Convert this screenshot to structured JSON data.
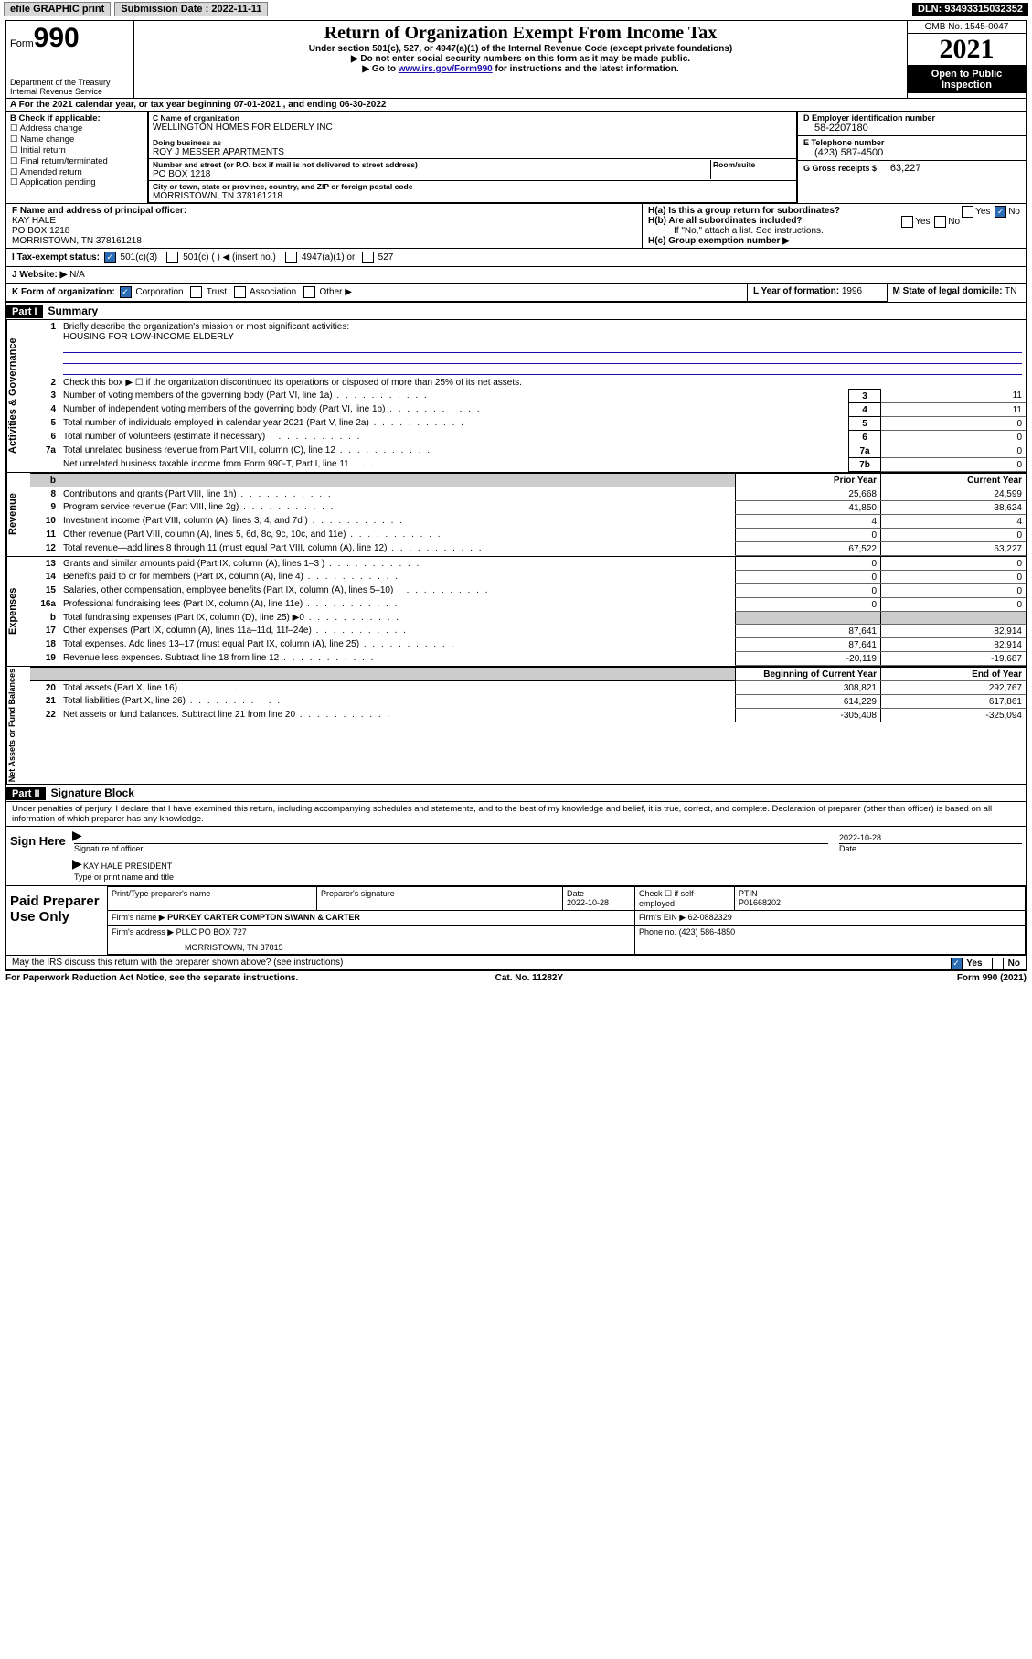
{
  "topbar": {
    "efile": "efile GRAPHIC print",
    "sub_label": "Submission Date : ",
    "sub_date": "2022-11-11",
    "dln": "DLN: 93493315032352"
  },
  "header": {
    "form_word": "Form",
    "form_num": "990",
    "dept1": "Department of the Treasury",
    "dept2": "Internal Revenue Service",
    "title": "Return of Organization Exempt From Income Tax",
    "sub1": "Under section 501(c), 527, or 4947(a)(1) of the Internal Revenue Code (except private foundations)",
    "sub2": "▶ Do not enter social security numbers on this form as it may be made public.",
    "sub3a": "▶ Go to ",
    "sub3link": "www.irs.gov/Form990",
    "sub3b": " for instructions and the latest information.",
    "omb": "OMB No. 1545-0047",
    "year": "2021",
    "open": "Open to Public Inspection"
  },
  "A": {
    "text": "A For the 2021 calendar year, or tax year beginning 07-01-2021   , and ending 06-30-2022"
  },
  "B": {
    "title": "B Check if applicable:",
    "opts": [
      "Address change",
      "Name change",
      "Initial return",
      "Final return/terminated",
      "Amended return",
      "Application pending"
    ]
  },
  "C": {
    "name_lbl": "C Name of organization",
    "name": "WELLINGTON HOMES FOR ELDERLY INC",
    "dba_lbl": "Doing business as",
    "dba": "ROY J MESSER APARTMENTS",
    "street_lbl": "Number and street (or P.O. box if mail is not delivered to street address)",
    "room_lbl": "Room/suite",
    "street": "PO BOX 1218",
    "city_lbl": "City or town, state or province, country, and ZIP or foreign postal code",
    "city": "MORRISTOWN, TN  378161218"
  },
  "D": {
    "lbl": "D Employer identification number",
    "val": "58-2207180"
  },
  "E": {
    "lbl": "E Telephone number",
    "val": "(423) 587-4500"
  },
  "G": {
    "lbl": "G Gross receipts $",
    "val": "63,227"
  },
  "F": {
    "lbl": "F  Name and address of principal officer:",
    "l1": "KAY HALE",
    "l2": "PO BOX 1218",
    "l3": "MORRISTOWN, TN  378161218"
  },
  "H": {
    "a": "H(a)  Is this a group return for subordinates?",
    "b": "H(b)  Are all subordinates included?",
    "bnote": "If \"No,\" attach a list. See instructions.",
    "c": "H(c)  Group exemption number ▶",
    "yes": "Yes",
    "no": "No"
  },
  "I": {
    "lbl": "I   Tax-exempt status:",
    "o1": "501(c)(3)",
    "o2": "501(c) (  ) ◀ (insert no.)",
    "o3": "4947(a)(1) or",
    "o4": "527"
  },
  "J": {
    "lbl": "J   Website: ▶",
    "val": "N/A"
  },
  "K": {
    "lbl": "K Form of organization:",
    "o1": "Corporation",
    "o2": "Trust",
    "o3": "Association",
    "o4": "Other ▶"
  },
  "L": {
    "lbl": "L Year of formation:",
    "val": "1996"
  },
  "M": {
    "lbl": "M State of legal domicile:",
    "val": "TN"
  },
  "part1": {
    "num": "Part I",
    "title": "Summary"
  },
  "gov": {
    "side": "Activities & Governance",
    "l1": "Briefly describe the organization's mission or most significant activities:",
    "l1v": "HOUSING FOR LOW-INCOME ELDERLY",
    "l2": "Check this box ▶ ☐  if the organization discontinued its operations or disposed of more than 25% of its net assets.",
    "rows": [
      {
        "n": "3",
        "t": "Number of voting members of the governing body (Part VI, line 1a)",
        "b": "3",
        "v": "11"
      },
      {
        "n": "4",
        "t": "Number of independent voting members of the governing body (Part VI, line 1b)",
        "b": "4",
        "v": "11"
      },
      {
        "n": "5",
        "t": "Total number of individuals employed in calendar year 2021 (Part V, line 2a)",
        "b": "5",
        "v": "0"
      },
      {
        "n": "6",
        "t": "Total number of volunteers (estimate if necessary)",
        "b": "6",
        "v": "0"
      },
      {
        "n": "7a",
        "t": "Total unrelated business revenue from Part VIII, column (C), line 12",
        "b": "7a",
        "v": "0"
      },
      {
        "n": "",
        "t": "Net unrelated business taxable income from Form 990-T, Part I, line 11",
        "b": "7b",
        "v": "0"
      }
    ]
  },
  "rev": {
    "side": "Revenue",
    "h1": "Prior Year",
    "h2": "Current Year",
    "rows": [
      {
        "n": "8",
        "t": "Contributions and grants (Part VIII, line 1h)",
        "p": "25,668",
        "c": "24,599"
      },
      {
        "n": "9",
        "t": "Program service revenue (Part VIII, line 2g)",
        "p": "41,850",
        "c": "38,624"
      },
      {
        "n": "10",
        "t": "Investment income (Part VIII, column (A), lines 3, 4, and 7d )",
        "p": "4",
        "c": "4"
      },
      {
        "n": "11",
        "t": "Other revenue (Part VIII, column (A), lines 5, 6d, 8c, 9c, 10c, and 11e)",
        "p": "0",
        "c": "0"
      },
      {
        "n": "12",
        "t": "Total revenue—add lines 8 through 11 (must equal Part VIII, column (A), line 12)",
        "p": "67,522",
        "c": "63,227"
      }
    ]
  },
  "exp": {
    "side": "Expenses",
    "rows": [
      {
        "n": "13",
        "t": "Grants and similar amounts paid (Part IX, column (A), lines 1–3 )",
        "p": "0",
        "c": "0"
      },
      {
        "n": "14",
        "t": "Benefits paid to or for members (Part IX, column (A), line 4)",
        "p": "0",
        "c": "0"
      },
      {
        "n": "15",
        "t": "Salaries, other compensation, employee benefits (Part IX, column (A), lines 5–10)",
        "p": "0",
        "c": "0"
      },
      {
        "n": "16a",
        "t": "Professional fundraising fees (Part IX, column (A), line 11e)",
        "p": "0",
        "c": "0"
      },
      {
        "n": "b",
        "t": "Total fundraising expenses (Part IX, column (D), line 25) ▶0",
        "p": "",
        "c": "",
        "grey": true
      },
      {
        "n": "17",
        "t": "Other expenses (Part IX, column (A), lines 11a–11d, 11f–24e)",
        "p": "87,641",
        "c": "82,914"
      },
      {
        "n": "18",
        "t": "Total expenses. Add lines 13–17 (must equal Part IX, column (A), line 25)",
        "p": "87,641",
        "c": "82,914"
      },
      {
        "n": "19",
        "t": "Revenue less expenses. Subtract line 18 from line 12",
        "p": "-20,119",
        "c": "-19,687"
      }
    ]
  },
  "net": {
    "side": "Net Assets or Fund Balances",
    "h1": "Beginning of Current Year",
    "h2": "End of Year",
    "rows": [
      {
        "n": "20",
        "t": "Total assets (Part X, line 16)",
        "p": "308,821",
        "c": "292,767"
      },
      {
        "n": "21",
        "t": "Total liabilities (Part X, line 26)",
        "p": "614,229",
        "c": "617,861"
      },
      {
        "n": "22",
        "t": "Net assets or fund balances. Subtract line 21 from line 20",
        "p": "-305,408",
        "c": "-325,094"
      }
    ]
  },
  "part2": {
    "num": "Part II",
    "title": "Signature Block"
  },
  "decl": "Under penalties of perjury, I declare that I have examined this return, including accompanying schedules and statements, and to the best of my knowledge and belief, it is true, correct, and complete. Declaration of preparer (other than officer) is based on all information of which preparer has any knowledge.",
  "sign": {
    "here": "Sign Here",
    "sig": "Signature of officer",
    "date": "Date",
    "datev": "2022-10-28",
    "name": "KAY HALE  PRESIDENT",
    "nlbl": "Type or print name and title"
  },
  "prep": {
    "side": "Paid Preparer Use Only",
    "h1": "Print/Type preparer's name",
    "h2": "Preparer's signature",
    "h3": "Date",
    "h3v": "2022-10-28",
    "h4": "Check ☐ if self-employed",
    "h5": "PTIN",
    "h5v": "P01668202",
    "firm_lbl": "Firm's name    ▶",
    "firm": "PURKEY CARTER COMPTON SWANN & CARTER",
    "ein_lbl": "Firm's EIN ▶",
    "ein": "62-0882329",
    "addr_lbl": "Firm's address ▶",
    "addr1": "PLLC PO BOX 727",
    "addr2": "MORRISTOWN, TN  37815",
    "ph_lbl": "Phone no.",
    "ph": "(423) 586-4850"
  },
  "may": {
    "t": "May the IRS discuss this return with the preparer shown above? (see instructions)",
    "yes": "Yes",
    "no": "No"
  },
  "foot": {
    "l": "For Paperwork Reduction Act Notice, see the separate instructions.",
    "c": "Cat. No. 11282Y",
    "r": "Form 990 (2021)"
  }
}
